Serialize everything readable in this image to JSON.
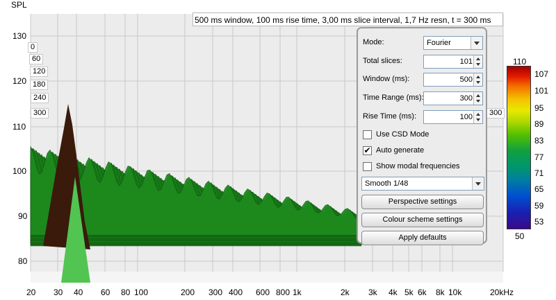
{
  "plot": {
    "y_axis_title": "SPL",
    "y_ticks": [
      "130",
      "120",
      "110",
      "100",
      "90",
      "80"
    ],
    "x_ticks": [
      "20",
      "30",
      "40",
      "60",
      "80",
      "100",
      "200",
      "300",
      "400",
      "600",
      "800",
      "1k",
      "2k",
      "3k",
      "4k",
      "5k",
      "6k",
      "8k",
      "10k",
      "20kHz"
    ],
    "time_labels": [
      "0",
      "60",
      "120",
      "180",
      "240",
      "300"
    ],
    "time_label_right": "300",
    "info": "500 ms window, 100 ms rise time, 3,00 ms slice interval, 1,7 Hz resn, t = 300 ms"
  },
  "panel": {
    "mode_label": "Mode:",
    "mode_value": "Fourier",
    "total_slices_label": "Total slices:",
    "total_slices_value": "101",
    "window_label": "Window (ms):",
    "window_value": "500",
    "time_range_label": "Time Range (ms):",
    "time_range_value": "300",
    "rise_time_label": "Rise Time (ms):",
    "rise_time_value": "100",
    "use_csd_label": "Use CSD Mode",
    "auto_generate_label": "Auto generate",
    "modal_freq_label": "Show modal frequencies",
    "smoothing_value": "Smooth 1/48",
    "perspective_button": "Perspective settings",
    "colour_button": "Colour scheme settings",
    "defaults_button": "Apply defaults"
  },
  "checks": {
    "use_csd": false,
    "auto_generate": true,
    "modal_freq": false
  },
  "colour_scale": {
    "top": "110",
    "bottom": "50",
    "labels": [
      "107",
      "101",
      "95",
      "89",
      "83",
      "77",
      "71",
      "65",
      "59",
      "53"
    ]
  },
  "colors": {
    "peak_dark": "#3a1a0a",
    "green": "#1e8a1e",
    "light_green": "#52c452"
  }
}
